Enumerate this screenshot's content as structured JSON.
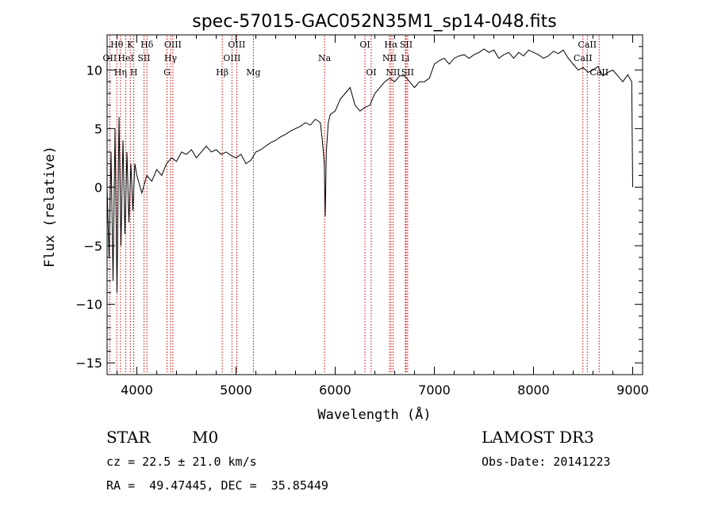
{
  "chart_data": {
    "type": "line",
    "title": "spec-57015-GAC052N35M1_sp14-048.fits",
    "xlabel": "Wavelength (Å)",
    "ylabel": "Flux (relative)",
    "xlim": [
      3700,
      9100
    ],
    "ylim": [
      -16,
      13
    ],
    "x_ticks": [
      4000,
      5000,
      6000,
      7000,
      8000,
      9000
    ],
    "y_ticks": [
      -15,
      -10,
      -5,
      0,
      5,
      10
    ],
    "series": [
      {
        "name": "spectrum",
        "x": [
          3700,
          3720,
          3740,
          3760,
          3780,
          3800,
          3820,
          3840,
          3860,
          3880,
          3900,
          3920,
          3940,
          3960,
          3980,
          4000,
          4050,
          4100,
          4150,
          4200,
          4250,
          4300,
          4350,
          4400,
          4450,
          4500,
          4550,
          4600,
          4650,
          4700,
          4750,
          4800,
          4850,
          4900,
          4950,
          5000,
          5050,
          5100,
          5150,
          5200,
          5250,
          5300,
          5350,
          5400,
          5450,
          5500,
          5550,
          5600,
          5650,
          5700,
          5750,
          5800,
          5850,
          5870,
          5890,
          5900,
          5910,
          5930,
          5950,
          6000,
          6050,
          6100,
          6150,
          6200,
          6250,
          6300,
          6350,
          6400,
          6450,
          6500,
          6550,
          6600,
          6650,
          6700,
          6750,
          6800,
          6850,
          6900,
          6950,
          7000,
          7050,
          7100,
          7150,
          7200,
          7250,
          7300,
          7350,
          7400,
          7450,
          7500,
          7550,
          7600,
          7650,
          7700,
          7750,
          7800,
          7850,
          7900,
          7950,
          8000,
          8050,
          8100,
          8150,
          8200,
          8250,
          8300,
          8350,
          8400,
          8450,
          8500,
          8550,
          8600,
          8650,
          8700,
          8750,
          8800,
          8850,
          8900,
          8950,
          8990,
          9000
        ],
        "y": [
          0,
          -6,
          3,
          -8,
          5,
          -9,
          6,
          -5,
          4,
          -4,
          3,
          -3,
          2,
          -2,
          2,
          1,
          -0.5,
          1,
          0.5,
          1.5,
          1,
          2,
          2.5,
          2.2,
          3,
          2.8,
          3.2,
          2.5,
          3,
          3.5,
          3,
          3.2,
          2.8,
          3,
          2.7,
          2.5,
          2.8,
          2,
          2.3,
          3,
          3.2,
          3.5,
          3.8,
          4,
          4.3,
          4.5,
          4.8,
          5,
          5.2,
          5.5,
          5.3,
          5.8,
          5.5,
          4,
          2,
          -2.5,
          3,
          5.5,
          6.2,
          6.5,
          7.5,
          8,
          8.5,
          7,
          6.5,
          6.8,
          7,
          8,
          8.5,
          9,
          9.3,
          9,
          9.5,
          9.5,
          9,
          8.5,
          9,
          9,
          9.3,
          10.5,
          10.8,
          11,
          10.5,
          11,
          11.2,
          11.3,
          11,
          11.3,
          11.5,
          11.8,
          11.5,
          11.7,
          11,
          11.3,
          11.5,
          11,
          11.5,
          11.2,
          11.7,
          11.5,
          11.3,
          11,
          11.2,
          11.6,
          11.4,
          11.7,
          11,
          10.5,
          10,
          10.2,
          9.8,
          10,
          10.3,
          9.5,
          9.8,
          10,
          9.5,
          9,
          9.6,
          9,
          0
        ]
      }
    ],
    "spectral_lines": [
      {
        "label": "Hθ",
        "wavelength": 3798,
        "tier": 1
      },
      {
        "label": "OII",
        "wavelength": 3727,
        "tier": 2
      },
      {
        "label": "Hη",
        "wavelength": 3835,
        "tier": 3
      },
      {
        "label": "K",
        "wavelength": 3934,
        "tier": 1
      },
      {
        "label": "HeI",
        "wavelength": 3889,
        "tier": 2
      },
      {
        "label": "H",
        "wavelength": 3969,
        "tier": 3
      },
      {
        "label": "Hδ",
        "wavelength": 4102,
        "tier": 1
      },
      {
        "label": "SII",
        "wavelength": 4072,
        "tier": 2
      },
      {
        "label": "OIII",
        "wavelength": 4363,
        "tier": 1
      },
      {
        "label": "Hγ",
        "wavelength": 4340,
        "tier": 2
      },
      {
        "label": "G",
        "wavelength": 4304,
        "tier": 3
      },
      {
        "label": "Hβ",
        "wavelength": 4861,
        "tier": 3
      },
      {
        "label": "OIII",
        "wavelength": 5007,
        "tier": 1
      },
      {
        "label": "OIII",
        "wavelength": 4959,
        "tier": 2
      },
      {
        "label": "Mg",
        "wavelength": 5175,
        "tier": 3
      },
      {
        "label": "Na",
        "wavelength": 5893,
        "tier": 2
      },
      {
        "label": "OI",
        "wavelength": 6300,
        "tier": 1
      },
      {
        "label": "OI",
        "wavelength": 6363,
        "tier": 3
      },
      {
        "label": "Hα",
        "wavelength": 6563,
        "tier": 1
      },
      {
        "label": "NII",
        "wavelength": 6548,
        "tier": 2
      },
      {
        "label": "NII",
        "wavelength": 6583,
        "tier": 3
      },
      {
        "label": "SII",
        "wavelength": 6716,
        "tier": 1
      },
      {
        "label": "Li",
        "wavelength": 6708,
        "tier": 2
      },
      {
        "label": "SII",
        "wavelength": 6731,
        "tier": 3
      },
      {
        "label": "CaII",
        "wavelength": 8542,
        "tier": 1
      },
      {
        "label": "CaII",
        "wavelength": 8498,
        "tier": 2
      },
      {
        "label": "CaII",
        "wavelength": 8662,
        "tier": 3
      }
    ]
  },
  "info": {
    "object_class": "STAR",
    "subclass": "M0",
    "survey": "LAMOST DR3",
    "cz": "cz = 22.5 ± 21.0 km/s",
    "obs_date": "Obs-Date: 20141223",
    "coords": "RA =  49.47445, DEC =  35.85449"
  },
  "colors": {
    "line_marker": "#cc0000",
    "spectrum": "#000000",
    "axes": "#000000"
  }
}
